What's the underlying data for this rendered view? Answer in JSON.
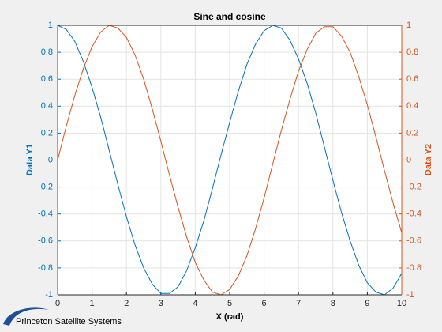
{
  "chart_data": {
    "type": "line",
    "title": "Sine and cosine",
    "xlabel": "X (rad)",
    "ylabel": "Data Y1",
    "y2label": "Data Y2",
    "x": [
      0,
      0.25,
      0.5,
      0.75,
      1,
      1.25,
      1.5,
      1.75,
      2,
      2.25,
      2.5,
      2.75,
      3,
      3.25,
      3.5,
      3.75,
      4,
      4.25,
      4.5,
      4.75,
      5,
      5.25,
      5.5,
      5.75,
      6,
      6.25,
      6.5,
      6.75,
      7,
      7.25,
      7.5,
      7.75,
      8,
      8.25,
      8.5,
      8.75,
      9,
      9.25,
      9.5,
      9.75,
      10
    ],
    "series": [
      {
        "color": "#0072bd",
        "values": [
          1,
          0.97,
          0.88,
          0.73,
          0.54,
          0.32,
          0.07,
          -0.18,
          -0.42,
          -0.63,
          -0.8,
          -0.92,
          -0.99,
          -0.99,
          -0.94,
          -0.82,
          -0.65,
          -0.45,
          -0.21,
          0.04,
          0.28,
          0.51,
          0.71,
          0.86,
          0.96,
          1,
          0.98,
          0.89,
          0.75,
          0.57,
          0.35,
          0.1,
          -0.15,
          -0.39,
          -0.6,
          -0.78,
          -0.91,
          -0.98,
          -1,
          -0.95,
          -0.84
        ]
      },
      {
        "color": "#d95319",
        "axis": "y2",
        "values": [
          0,
          0.25,
          0.48,
          0.68,
          0.84,
          0.95,
          1,
          0.98,
          0.91,
          0.78,
          0.6,
          0.38,
          0.14,
          -0.11,
          -0.35,
          -0.57,
          -0.76,
          -0.89,
          -0.98,
          -1,
          -0.96,
          -0.86,
          -0.71,
          -0.51,
          -0.28,
          -0.03,
          0.22,
          0.45,
          0.66,
          0.82,
          0.94,
          0.99,
          0.99,
          0.92,
          0.8,
          0.62,
          0.41,
          0.17,
          -0.08,
          -0.32,
          -0.54
        ]
      }
    ],
    "xlim": [
      0,
      10
    ],
    "xticks": [
      0,
      1,
      2,
      3,
      4,
      5,
      6,
      7,
      8,
      9,
      10
    ],
    "ylim": [
      -1,
      1
    ],
    "yticks": [
      -1,
      -0.8,
      -0.6,
      -0.4,
      -0.2,
      0,
      0.2,
      0.4,
      0.6,
      0.8,
      1
    ],
    "y2lim": [
      -1,
      1
    ],
    "y2ticks": [
      -1,
      -0.8,
      -0.6,
      -0.4,
      -0.2,
      0,
      0.2,
      0.4,
      0.6,
      0.8,
      1
    ],
    "grid": true
  },
  "logo": "Princeton Satellite Systems"
}
